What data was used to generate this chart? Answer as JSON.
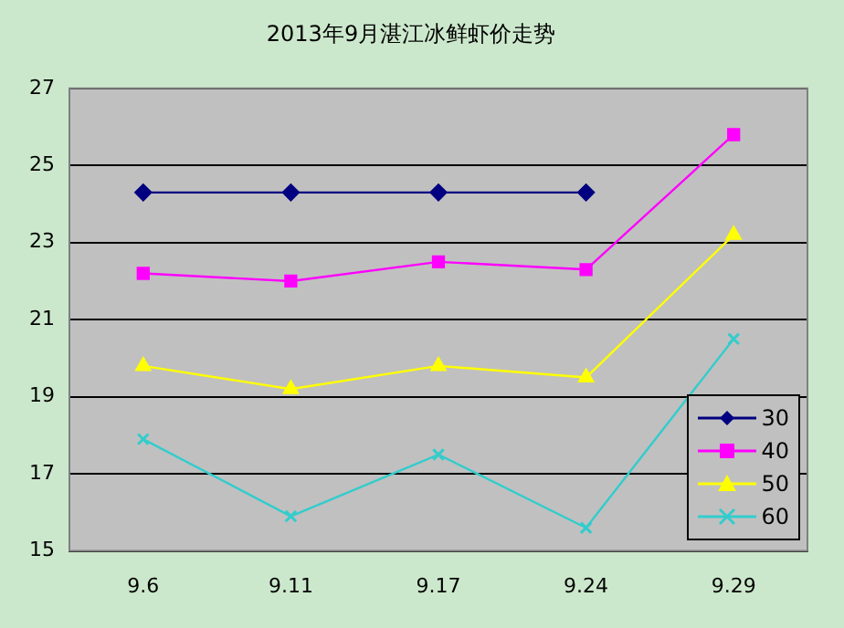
{
  "chart_data": {
    "type": "line",
    "title": "2013年9月湛江冰鲜虾价走势",
    "categories": [
      "9.6",
      "9.11",
      "9.17",
      "9.24",
      "9.29"
    ],
    "series": [
      {
        "name": "30",
        "color": "#000080",
        "marker": "diamond",
        "values": [
          24.3,
          24.3,
          24.3,
          24.3,
          null
        ]
      },
      {
        "name": "40",
        "color": "#ff00ff",
        "marker": "square",
        "values": [
          22.2,
          22.0,
          22.5,
          22.3,
          25.8
        ]
      },
      {
        "name": "50",
        "color": "#ffff00",
        "marker": "triangle",
        "values": [
          19.8,
          19.2,
          19.8,
          19.5,
          23.2
        ]
      },
      {
        "name": "60",
        "color": "#33cccc",
        "marker": "cross",
        "values": [
          17.9,
          15.9,
          17.5,
          15.6,
          20.5
        ]
      }
    ],
    "ylim": [
      15,
      27
    ],
    "yticks": [
      15,
      17,
      19,
      21,
      23,
      25,
      27
    ],
    "grid": "y",
    "legend": "bottom right"
  }
}
